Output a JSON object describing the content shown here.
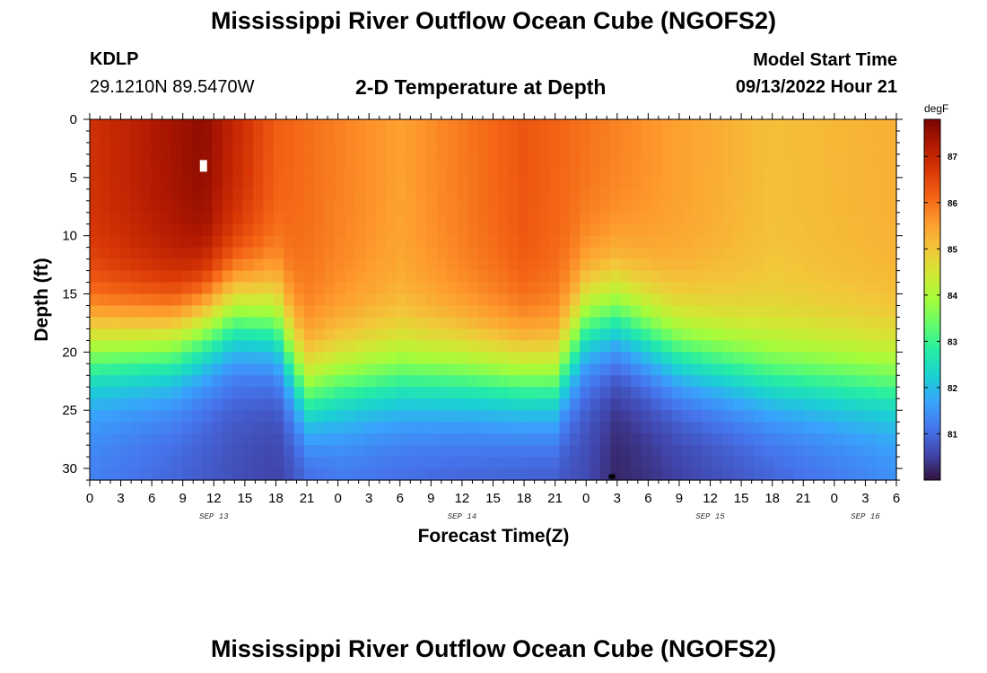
{
  "header": {
    "title": "Mississippi River Outflow Ocean Cube (NGOFS2)",
    "station_id": "KDLP",
    "station_coords": "29.1210N  89.5470W",
    "plot_title": "2-D Temperature at Depth",
    "model_start_label": "Model Start Time",
    "model_start_value": "09/13/2022 Hour 21"
  },
  "footer": {
    "title": "Mississippi River Outflow Ocean Cube (NGOFS2)"
  },
  "chart_data": {
    "type": "heatmap",
    "title": "2-D Temperature at Depth",
    "xlabel": "Forecast Time(Z)",
    "ylabel": "Depth (ft)",
    "x_range_hours": [
      0,
      78
    ],
    "x_origin": "09/13/2022 00Z",
    "x_ticks": [
      {
        "hour": 0,
        "label": "0"
      },
      {
        "hour": 3,
        "label": "3"
      },
      {
        "hour": 6,
        "label": "6"
      },
      {
        "hour": 9,
        "label": "9"
      },
      {
        "hour": 12,
        "label": "12"
      },
      {
        "hour": 15,
        "label": "15"
      },
      {
        "hour": 18,
        "label": "18"
      },
      {
        "hour": 21,
        "label": "21"
      },
      {
        "hour": 24,
        "label": "0"
      },
      {
        "hour": 27,
        "label": "3"
      },
      {
        "hour": 30,
        "label": "6"
      },
      {
        "hour": 33,
        "label": "9"
      },
      {
        "hour": 36,
        "label": "12"
      },
      {
        "hour": 39,
        "label": "15"
      },
      {
        "hour": 42,
        "label": "18"
      },
      {
        "hour": 45,
        "label": "21"
      },
      {
        "hour": 48,
        "label": "0"
      },
      {
        "hour": 51,
        "label": "3"
      },
      {
        "hour": 54,
        "label": "6"
      },
      {
        "hour": 57,
        "label": "9"
      },
      {
        "hour": 60,
        "label": "12"
      },
      {
        "hour": 63,
        "label": "15"
      },
      {
        "hour": 66,
        "label": "18"
      },
      {
        "hour": 69,
        "label": "21"
      },
      {
        "hour": 72,
        "label": "0"
      },
      {
        "hour": 75,
        "label": "3"
      },
      {
        "hour": 78,
        "label": "6"
      }
    ],
    "date_labels": [
      {
        "hour": 12,
        "label": "SEP 13"
      },
      {
        "hour": 36,
        "label": "SEP 14"
      },
      {
        "hour": 60,
        "label": "SEP 15"
      },
      {
        "hour": 75,
        "label": "SEP 16"
      }
    ],
    "y_range": [
      0,
      31
    ],
    "y_ticks": [
      0,
      5,
      10,
      15,
      20,
      25,
      30
    ],
    "y_inverted": true,
    "colorbar": {
      "unit": "degF",
      "range": [
        80.0,
        87.8
      ],
      "ticks": [
        81,
        82,
        83,
        84,
        85,
        86,
        87
      ],
      "colormap": [
        "#30123b",
        "#4145ab",
        "#4675ed",
        "#39a2fc",
        "#1bcfd4",
        "#24eca6",
        "#61fc6c",
        "#a4fc3b",
        "#d1e834",
        "#f3c63a",
        "#fe9b2d",
        "#f36315",
        "#d93806",
        "#b11901",
        "#7a0402"
      ]
    },
    "surface_layer_temp_degF": [
      {
        "hour": 0,
        "value": 86.8
      },
      {
        "hour": 11,
        "value": 87.6
      },
      {
        "hour": 18,
        "value": 86.2
      },
      {
        "hour": 30,
        "value": 85.5
      },
      {
        "hour": 42,
        "value": 86.3
      },
      {
        "hour": 57,
        "value": 85.5
      },
      {
        "hour": 66,
        "value": 85.1
      },
      {
        "hour": 78,
        "value": 85.3
      }
    ],
    "bottom_layer_temp_degF": [
      {
        "hour": 0,
        "value": 81.2
      },
      {
        "hour": 18,
        "value": 80.5
      },
      {
        "hour": 24,
        "value": 81.0
      },
      {
        "hour": 48,
        "value": 80.6
      },
      {
        "hour": 51,
        "value": 80.2
      },
      {
        "hour": 78,
        "value": 81.3
      }
    ],
    "thermocline_depth_ft": [
      {
        "hour": 0,
        "value": 19.5
      },
      {
        "hour": 8,
        "value": 19.0
      },
      {
        "hour": 14,
        "value": 16.5
      },
      {
        "hour": 18,
        "value": 17.5
      },
      {
        "hour": 21,
        "value": 23.5
      },
      {
        "hour": 24,
        "value": 22.5
      },
      {
        "hour": 30,
        "value": 22.0
      },
      {
        "hour": 36,
        "value": 22.0
      },
      {
        "hour": 45,
        "value": 22.5
      },
      {
        "hour": 48,
        "value": 17.5
      },
      {
        "hour": 51,
        "value": 17.0
      },
      {
        "hour": 57,
        "value": 20.0
      },
      {
        "hour": 66,
        "value": 22.0
      },
      {
        "hour": 78,
        "value": 22.5
      }
    ],
    "markers": [
      {
        "type": "max",
        "hour": 11,
        "depth": 4,
        "color": "#ffffff"
      },
      {
        "type": "min",
        "hour": 50.5,
        "depth": 31,
        "color": "#000000"
      }
    ]
  }
}
